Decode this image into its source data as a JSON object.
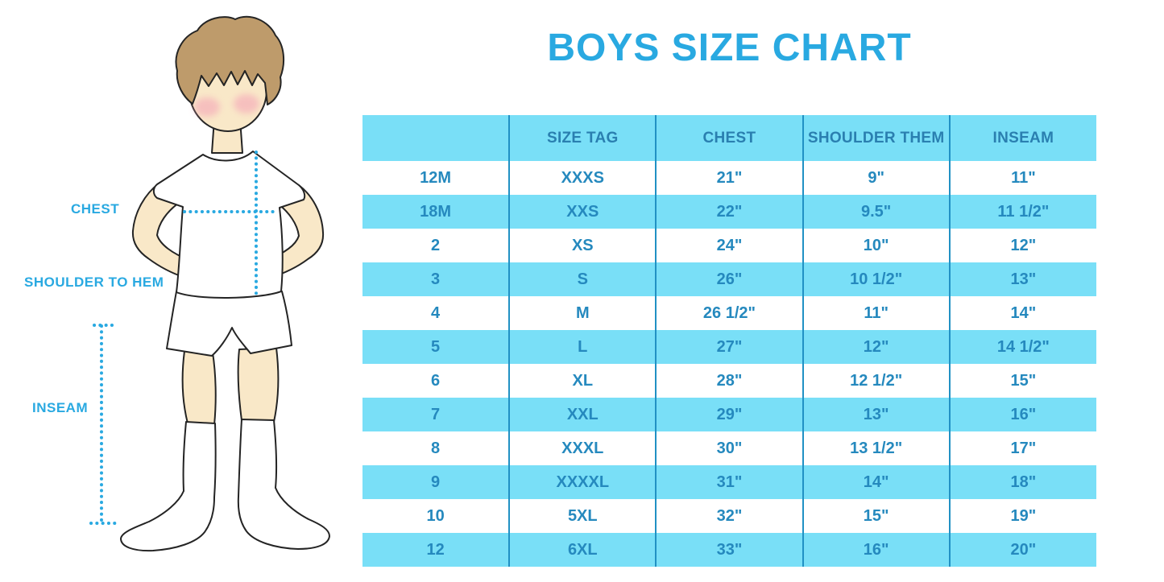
{
  "title": "BOYS SIZE CHART",
  "colors": {
    "accent_blue": "#29A9E1",
    "row_cyan": "#79DFF7",
    "table_text_blue": "#2589BE",
    "header_text_blue": "#2A7FB0",
    "divider_blue": "#2191C4",
    "hair_brown": "#BE9B6B",
    "skin": "#F9E8C8",
    "cheek_pink": "#F4A6B8"
  },
  "illustration": {
    "labels": {
      "chest": "CHEST",
      "shoulder_to_hem": "SHOULDER TO HEM",
      "inseam": "INSEAM"
    },
    "figure": "boy-in-white-tshirt-shorts-and-knee-socks"
  },
  "chart_data": {
    "type": "table",
    "title": "BOYS SIZE CHART",
    "columns": [
      "",
      "SIZE TAG",
      "CHEST",
      "SHOULDER THEM",
      "INSEAM"
    ],
    "rows": [
      [
        "12M",
        "XXXS",
        "21\"",
        "9\"",
        "11\""
      ],
      [
        "18M",
        "XXS",
        "22\"",
        "9.5\"",
        "11 1/2\""
      ],
      [
        "2",
        "XS",
        "24\"",
        "10\"",
        "12\""
      ],
      [
        "3",
        "S",
        "26\"",
        "10 1/2\"",
        "13\""
      ],
      [
        "4",
        "M",
        "26 1/2\"",
        "11\"",
        "14\""
      ],
      [
        "5",
        "L",
        "27\"",
        "12\"",
        "14 1/2\""
      ],
      [
        "6",
        "XL",
        "28\"",
        "12 1/2\"",
        "15\""
      ],
      [
        "7",
        "XXL",
        "29\"",
        "13\"",
        "16\""
      ],
      [
        "8",
        "XXXL",
        "30\"",
        "13 1/2\"",
        "17\""
      ],
      [
        "9",
        "XXXXL",
        "31\"",
        "14\"",
        "18\""
      ],
      [
        "10",
        "5XL",
        "32\"",
        "15\"",
        "19\""
      ],
      [
        "12",
        "6XL",
        "33\"",
        "16\"",
        "20\""
      ]
    ],
    "layout_hints": {
      "alternating_row_fill": "white / cyan starting white",
      "grid": "vertical dividers only",
      "legend": "none"
    }
  }
}
